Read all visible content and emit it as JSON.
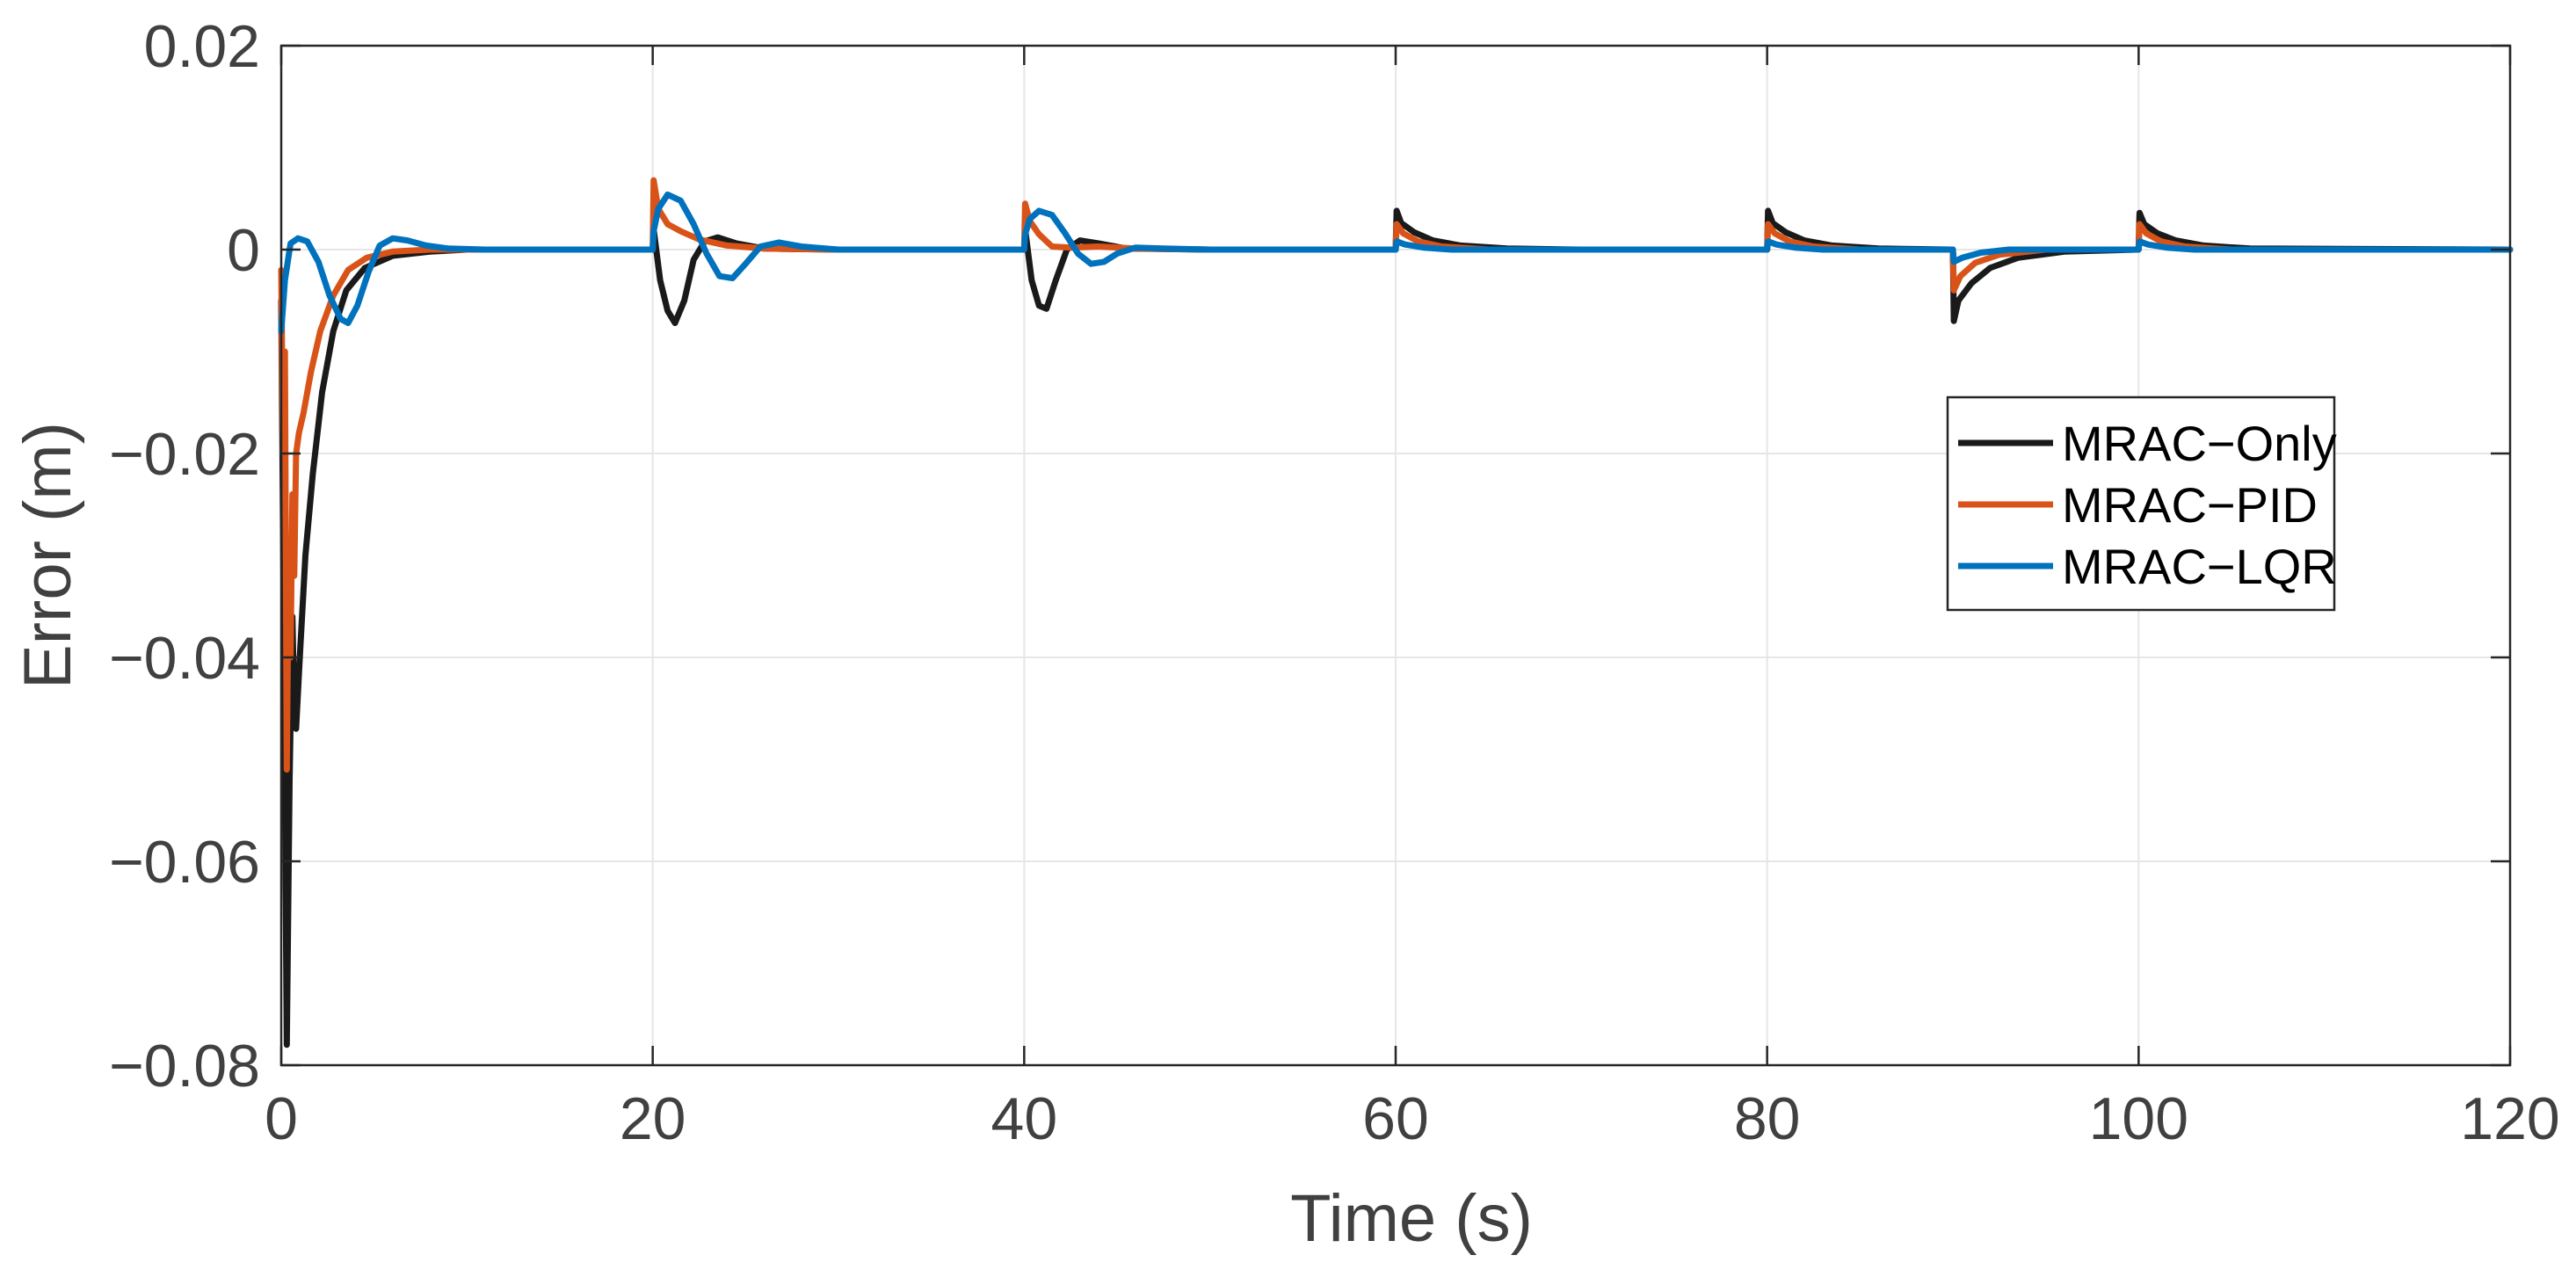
{
  "chart_data": {
    "type": "line",
    "title": "",
    "xlabel": "Time (s)",
    "ylabel": "Error (m)",
    "xlim": [
      0,
      120
    ],
    "ylim": [
      -0.08,
      0.02
    ],
    "xticks": [
      0,
      20,
      40,
      60,
      80,
      100,
      120
    ],
    "xtick_labels": [
      "0",
      "20",
      "40",
      "60",
      "80",
      "100",
      "120"
    ],
    "yticks": [
      0.02,
      0,
      -0.02,
      -0.04,
      -0.06,
      -0.08
    ],
    "ytick_labels": [
      "0.02",
      "0",
      "−0.02",
      "−0.04",
      "−0.06",
      "−0.08"
    ],
    "grid": true,
    "legend_position": "right",
    "series": [
      {
        "name": "MRAC−Only",
        "color": "#1a1a1a",
        "points": [
          [
            0,
            -0.005
          ],
          [
            0.15,
            -0.04
          ],
          [
            0.3,
            -0.078
          ],
          [
            0.45,
            -0.052
          ],
          [
            0.6,
            -0.036
          ],
          [
            0.7,
            -0.045
          ],
          [
            0.8,
            -0.047
          ],
          [
            1.0,
            -0.04
          ],
          [
            1.3,
            -0.03
          ],
          [
            1.7,
            -0.022
          ],
          [
            2.2,
            -0.014
          ],
          [
            2.8,
            -0.008
          ],
          [
            3.5,
            -0.004
          ],
          [
            4.5,
            -0.0018
          ],
          [
            6,
            -0.0006
          ],
          [
            8,
            -0.0002
          ],
          [
            10,
            0
          ],
          [
            20,
            0
          ],
          [
            20.05,
            0.002
          ],
          [
            20.4,
            -0.003
          ],
          [
            20.8,
            -0.006
          ],
          [
            21.2,
            -0.0072
          ],
          [
            21.7,
            -0.005
          ],
          [
            22.2,
            -0.001
          ],
          [
            22.8,
            0.0008
          ],
          [
            23.5,
            0.0012
          ],
          [
            24.5,
            0.0006
          ],
          [
            26,
            0.0001
          ],
          [
            30,
            0
          ],
          [
            40,
            0
          ],
          [
            40.05,
            0.002
          ],
          [
            40.4,
            -0.003
          ],
          [
            40.8,
            -0.0055
          ],
          [
            41.2,
            -0.0058
          ],
          [
            41.7,
            -0.003
          ],
          [
            42.3,
            0
          ],
          [
            43,
            0.0009
          ],
          [
            44,
            0.0006
          ],
          [
            45.5,
            0.0001
          ],
          [
            50,
            0
          ],
          [
            60,
            0
          ],
          [
            60.05,
            0.0038
          ],
          [
            60.3,
            0.0026
          ],
          [
            61,
            0.0017
          ],
          [
            62,
            0.0009
          ],
          [
            63.5,
            0.0004
          ],
          [
            66,
            0.0001
          ],
          [
            70,
            0
          ],
          [
            80,
            0
          ],
          [
            80.05,
            0.0038
          ],
          [
            80.3,
            0.0026
          ],
          [
            81,
            0.0017
          ],
          [
            82,
            0.0009
          ],
          [
            83.5,
            0.0004
          ],
          [
            86,
            0.0001
          ],
          [
            90,
            0
          ],
          [
            90.05,
            -0.007
          ],
          [
            90.3,
            -0.005
          ],
          [
            91,
            -0.0033
          ],
          [
            92,
            -0.0018
          ],
          [
            93.5,
            -0.0008
          ],
          [
            96,
            -0.0002
          ],
          [
            100,
            0
          ],
          [
            100.05,
            0.0036
          ],
          [
            100.3,
            0.0025
          ],
          [
            101,
            0.0016
          ],
          [
            102,
            0.0009
          ],
          [
            103.5,
            0.0004
          ],
          [
            106,
            0.0001
          ],
          [
            120,
            0
          ]
        ]
      },
      {
        "name": "MRAC−PID",
        "color": "#d95319",
        "points": [
          [
            0,
            -0.002
          ],
          [
            0.1,
            -0.02
          ],
          [
            0.2,
            -0.01
          ],
          [
            0.3,
            -0.051
          ],
          [
            0.4,
            -0.03
          ],
          [
            0.5,
            -0.04
          ],
          [
            0.6,
            -0.024
          ],
          [
            0.7,
            -0.032
          ],
          [
            0.8,
            -0.02
          ],
          [
            0.95,
            -0.018
          ],
          [
            1.2,
            -0.016
          ],
          [
            1.6,
            -0.012
          ],
          [
            2.1,
            -0.008
          ],
          [
            2.8,
            -0.0045
          ],
          [
            3.6,
            -0.002
          ],
          [
            4.6,
            -0.0008
          ],
          [
            6,
            -0.0002
          ],
          [
            8,
            0
          ],
          [
            20,
            0
          ],
          [
            20.05,
            0.0068
          ],
          [
            20.3,
            0.004
          ],
          [
            20.8,
            0.0025
          ],
          [
            21.5,
            0.0018
          ],
          [
            22.5,
            0.001
          ],
          [
            24,
            0.0004
          ],
          [
            26,
            0.0001
          ],
          [
            30,
            0
          ],
          [
            40,
            0
          ],
          [
            40.05,
            0.0045
          ],
          [
            40.3,
            0.0028
          ],
          [
            40.8,
            0.0015
          ],
          [
            41.5,
            0.0003
          ],
          [
            42.5,
            0.0002
          ],
          [
            44,
            0.0003
          ],
          [
            46,
            0.0001
          ],
          [
            50,
            0
          ],
          [
            60,
            0
          ],
          [
            60.05,
            0.0025
          ],
          [
            60.4,
            0.0016
          ],
          [
            61.2,
            0.0008
          ],
          [
            62.5,
            0.0003
          ],
          [
            65,
            0
          ],
          [
            80,
            0
          ],
          [
            80.05,
            0.0025
          ],
          [
            80.4,
            0.0016
          ],
          [
            81.2,
            0.0008
          ],
          [
            82.5,
            0.0003
          ],
          [
            85,
            0
          ],
          [
            90,
            0
          ],
          [
            90.05,
            -0.004
          ],
          [
            90.4,
            -0.0026
          ],
          [
            91.2,
            -0.0013
          ],
          [
            92.5,
            -0.0005
          ],
          [
            95,
            0
          ],
          [
            100,
            0
          ],
          [
            100.05,
            0.0025
          ],
          [
            100.4,
            0.0016
          ],
          [
            101.2,
            0.0008
          ],
          [
            102.5,
            0.0003
          ],
          [
            105,
            0
          ],
          [
            120,
            0
          ]
        ]
      },
      {
        "name": "MRAC−LQR",
        "color": "#0072bd",
        "points": [
          [
            0,
            -0.008
          ],
          [
            0.2,
            -0.003
          ],
          [
            0.5,
            0.0006
          ],
          [
            0.9,
            0.0011
          ],
          [
            1.4,
            0.0008
          ],
          [
            2,
            -0.0012
          ],
          [
            2.6,
            -0.0045
          ],
          [
            3.2,
            -0.0068
          ],
          [
            3.6,
            -0.0072
          ],
          [
            4.1,
            -0.0055
          ],
          [
            4.7,
            -0.0022
          ],
          [
            5.3,
            0.0004
          ],
          [
            6,
            0.0011
          ],
          [
            6.8,
            0.0009
          ],
          [
            7.8,
            0.0004
          ],
          [
            9,
            0.0001
          ],
          [
            11,
            0
          ],
          [
            20,
            0
          ],
          [
            20.05,
            0.0018
          ],
          [
            20.3,
            0.004
          ],
          [
            20.8,
            0.0054
          ],
          [
            21.5,
            0.0048
          ],
          [
            22.2,
            0.0025
          ],
          [
            22.9,
            -0.0004
          ],
          [
            23.6,
            -0.0026
          ],
          [
            24.3,
            -0.0028
          ],
          [
            25,
            -0.0014
          ],
          [
            25.8,
            0.0003
          ],
          [
            26.8,
            0.0007
          ],
          [
            28,
            0.0003
          ],
          [
            30,
            0
          ],
          [
            40,
            0
          ],
          [
            40.05,
            0.0015
          ],
          [
            40.3,
            0.003
          ],
          [
            40.8,
            0.0038
          ],
          [
            41.5,
            0.0034
          ],
          [
            42.2,
            0.0016
          ],
          [
            42.9,
            -0.0004
          ],
          [
            43.6,
            -0.0014
          ],
          [
            44.3,
            -0.0012
          ],
          [
            45,
            -0.0004
          ],
          [
            46,
            0.0002
          ],
          [
            47.5,
            0.0001
          ],
          [
            50,
            0
          ],
          [
            60,
            0
          ],
          [
            60.05,
            0.0008
          ],
          [
            60.5,
            0.0005
          ],
          [
            61.5,
            0.0002
          ],
          [
            63,
            0
          ],
          [
            80,
            0
          ],
          [
            80.05,
            0.0008
          ],
          [
            80.5,
            0.0005
          ],
          [
            81.5,
            0.0002
          ],
          [
            83,
            0
          ],
          [
            90,
            0
          ],
          [
            90.05,
            -0.0012
          ],
          [
            90.5,
            -0.0008
          ],
          [
            91.5,
            -0.0003
          ],
          [
            93,
            0
          ],
          [
            100,
            0
          ],
          [
            100.05,
            0.0008
          ],
          [
            100.5,
            0.0005
          ],
          [
            101.5,
            0.0002
          ],
          [
            103,
            0
          ],
          [
            120,
            0
          ]
        ]
      }
    ]
  }
}
